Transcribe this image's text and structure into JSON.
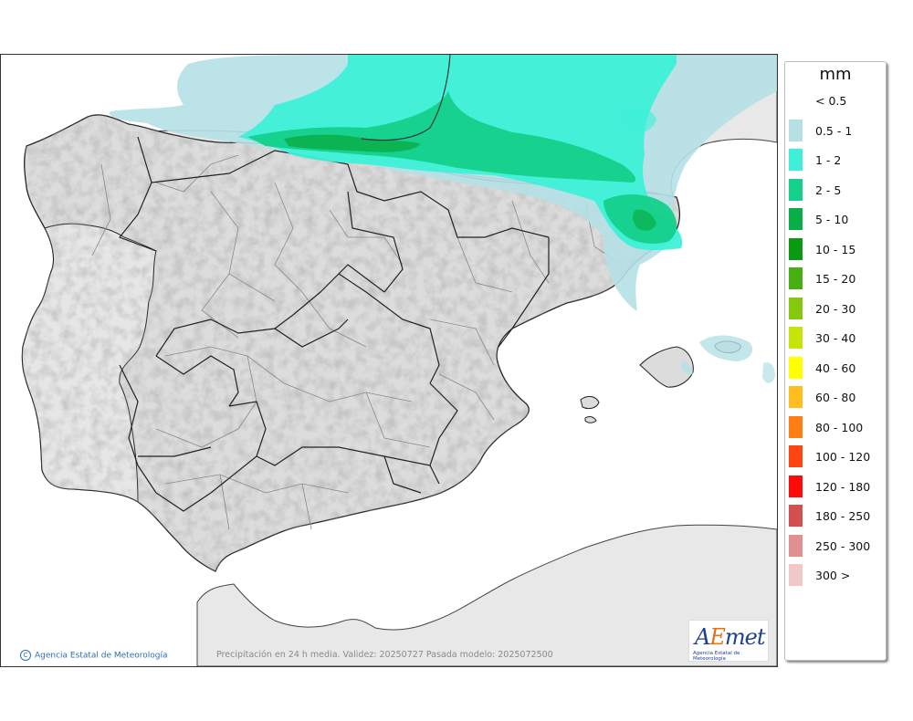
{
  "map": {
    "caption": "Precipitación en 24 h media. Validez: 20250727 Pasada modelo: 2025072500",
    "copyright": "Agencia Estatal de Meteorología",
    "copyright_symbol": "C",
    "logo_text_a": "A",
    "logo_text_e": "E",
    "logo_text_rest": "met",
    "logo_subtitle": "Agencia Estatal de Meteorología",
    "colors": {
      "sea": "#ffffff",
      "land": "#dcdcdc",
      "border": "#222222",
      "province": "#8a8a8a"
    }
  },
  "legend": {
    "title": "mm",
    "items": [
      {
        "label": "< 0.5",
        "color": "#ffffff"
      },
      {
        "label": "0.5 - 1",
        "color": "#b4e0e6"
      },
      {
        "label": "1 - 2",
        "color": "#3ef0d8"
      },
      {
        "label": "2 - 5",
        "color": "#14d08a"
      },
      {
        "label": "5 - 10",
        "color": "#0aae48"
      },
      {
        "label": "10 - 15",
        "color": "#0a9a12"
      },
      {
        "label": "15 - 20",
        "color": "#46b012"
      },
      {
        "label": "20 - 30",
        "color": "#86c80e"
      },
      {
        "label": "30 - 40",
        "color": "#c4e40a"
      },
      {
        "label": "40 - 60",
        "color": "#ffff00"
      },
      {
        "label": "60 - 80",
        "color": "#ffbe1e"
      },
      {
        "label": "80 - 100",
        "color": "#ff7f14"
      },
      {
        "label": "100 - 120",
        "color": "#ff4510"
      },
      {
        "label": "120 - 180",
        "color": "#ff0a0a"
      },
      {
        "label": "180 - 250",
        "color": "#d25050"
      },
      {
        "label": "250 - 300",
        "color": "#e09090"
      },
      {
        "label": "300 >",
        "color": "#f0c8c8"
      }
    ]
  }
}
